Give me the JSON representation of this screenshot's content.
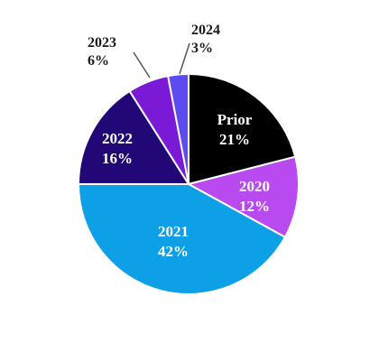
{
  "chart_data": {
    "type": "pie",
    "title": "",
    "slices": [
      {
        "label": "Prior",
        "value": 21,
        "value_text": "21%",
        "color": "#000000",
        "label_color": "#ffffff",
        "label_position": "inside"
      },
      {
        "label": "2020",
        "value": 12,
        "value_text": "12%",
        "color": "#b94af0",
        "label_color": "#ffffff",
        "label_position": "inside"
      },
      {
        "label": "2021",
        "value": 42,
        "value_text": "42%",
        "color": "#0ea0e6",
        "label_color": "#ffffff",
        "label_position": "inside"
      },
      {
        "label": "2022",
        "value": 16,
        "value_text": "16%",
        "color": "#220877",
        "label_color": "#ffffff",
        "label_position": "inside"
      },
      {
        "label": "2023",
        "value": 6,
        "value_text": "6%",
        "color": "#7a1ad6",
        "label_color": "#1a1a1a",
        "label_position": "outside"
      },
      {
        "label": "2024",
        "value": 3,
        "value_text": "3%",
        "color": "#5b4bf0",
        "label_color": "#1a1a1a",
        "label_position": "outside"
      }
    ],
    "start_angle": "top",
    "direction": "clockwise",
    "legend": "none"
  }
}
